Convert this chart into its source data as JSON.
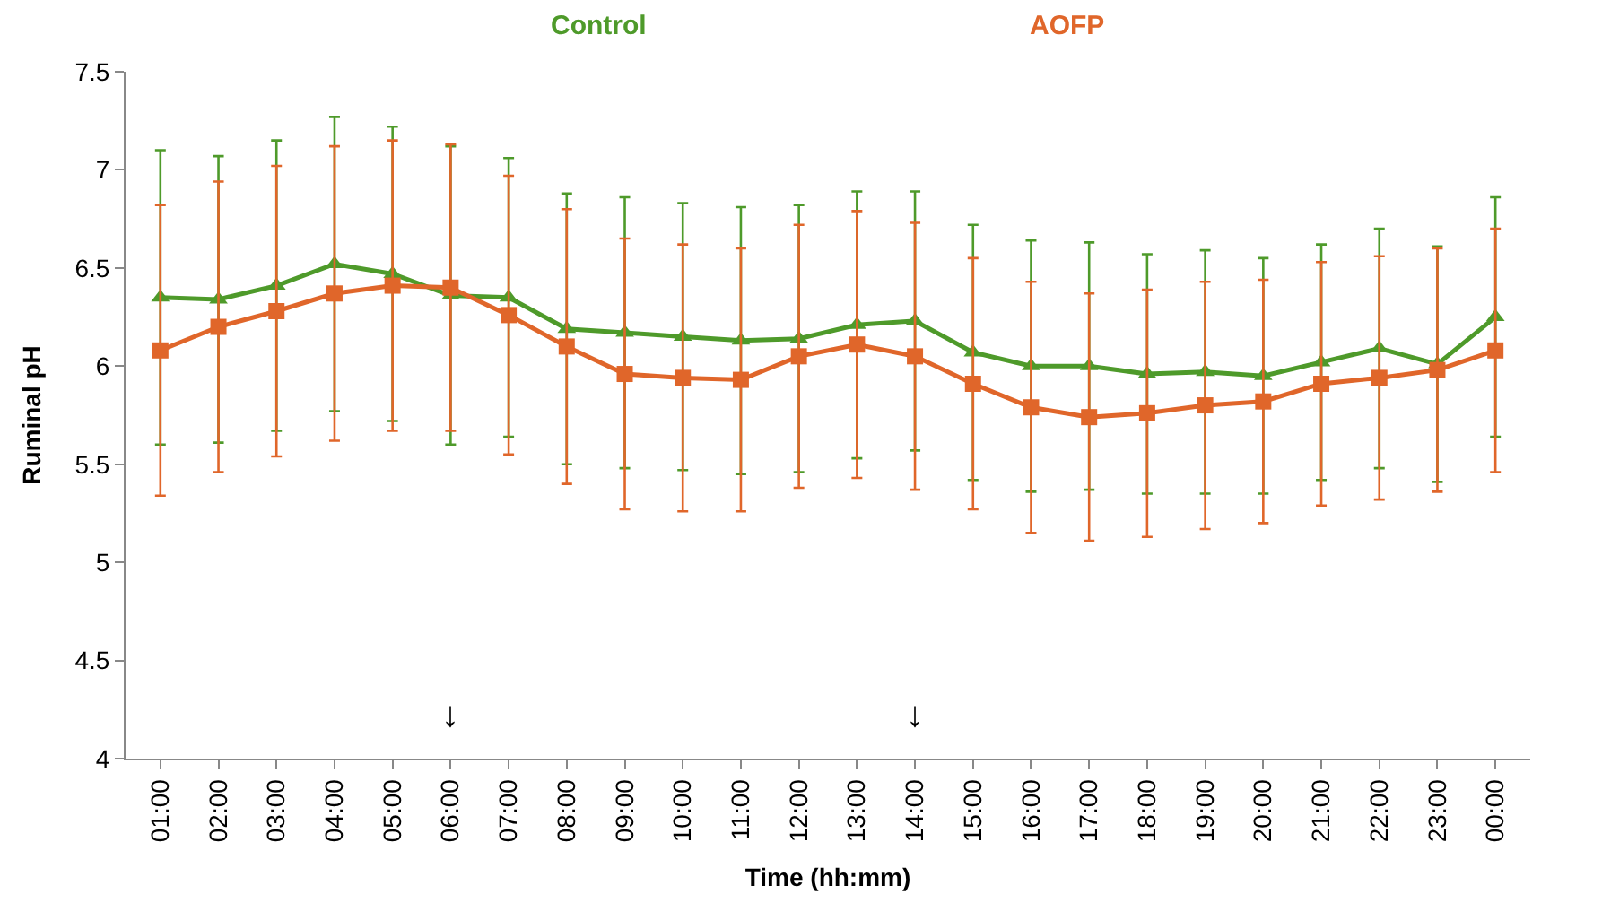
{
  "chart_data": {
    "type": "line",
    "xlabel": "Time (hh:mm)",
    "ylabel": "Ruminal pH",
    "categories": [
      "01:00",
      "02:00",
      "03:00",
      "04:00",
      "05:00",
      "06:00",
      "07:00",
      "08:00",
      "09:00",
      "10:00",
      "11:00",
      "12:00",
      "13:00",
      "14:00",
      "15:00",
      "16:00",
      "17:00",
      "18:00",
      "19:00",
      "20:00",
      "21:00",
      "22:00",
      "23:00",
      "00:00"
    ],
    "series": [
      {
        "name": "Control",
        "color": "#4e9a2a",
        "marker": "triangle",
        "values": [
          6.35,
          6.34,
          6.41,
          6.52,
          6.47,
          6.36,
          6.35,
          6.19,
          6.17,
          6.15,
          6.13,
          6.14,
          6.21,
          6.23,
          6.07,
          6.0,
          6.0,
          5.96,
          5.97,
          5.95,
          6.02,
          6.09,
          6.01,
          6.25
        ],
        "errors": [
          0.75,
          0.73,
          0.74,
          0.75,
          0.75,
          0.76,
          0.71,
          0.69,
          0.69,
          0.68,
          0.68,
          0.68,
          0.68,
          0.66,
          0.65,
          0.64,
          0.63,
          0.61,
          0.62,
          0.6,
          0.6,
          0.61,
          0.6,
          0.61
        ]
      },
      {
        "name": "AOFP",
        "color": "#e0662a",
        "marker": "square",
        "values": [
          6.08,
          6.2,
          6.28,
          6.37,
          6.41,
          6.4,
          6.26,
          6.1,
          5.96,
          5.94,
          5.93,
          6.05,
          6.11,
          6.05,
          5.91,
          5.79,
          5.74,
          5.76,
          5.8,
          5.82,
          5.91,
          5.94,
          5.98,
          6.08
        ],
        "errors": [
          0.74,
          0.74,
          0.74,
          0.75,
          0.74,
          0.73,
          0.71,
          0.7,
          0.69,
          0.68,
          0.67,
          0.67,
          0.68,
          0.68,
          0.64,
          0.64,
          0.63,
          0.63,
          0.63,
          0.62,
          0.62,
          0.62,
          0.62,
          0.62
        ]
      }
    ],
    "ylim": [
      4,
      7.5
    ],
    "yticks": [
      4,
      4.5,
      5,
      5.5,
      6,
      6.5,
      7,
      7.5
    ],
    "annotations": [
      "↓",
      "↓"
    ],
    "grid": false,
    "line_style": "solid"
  }
}
